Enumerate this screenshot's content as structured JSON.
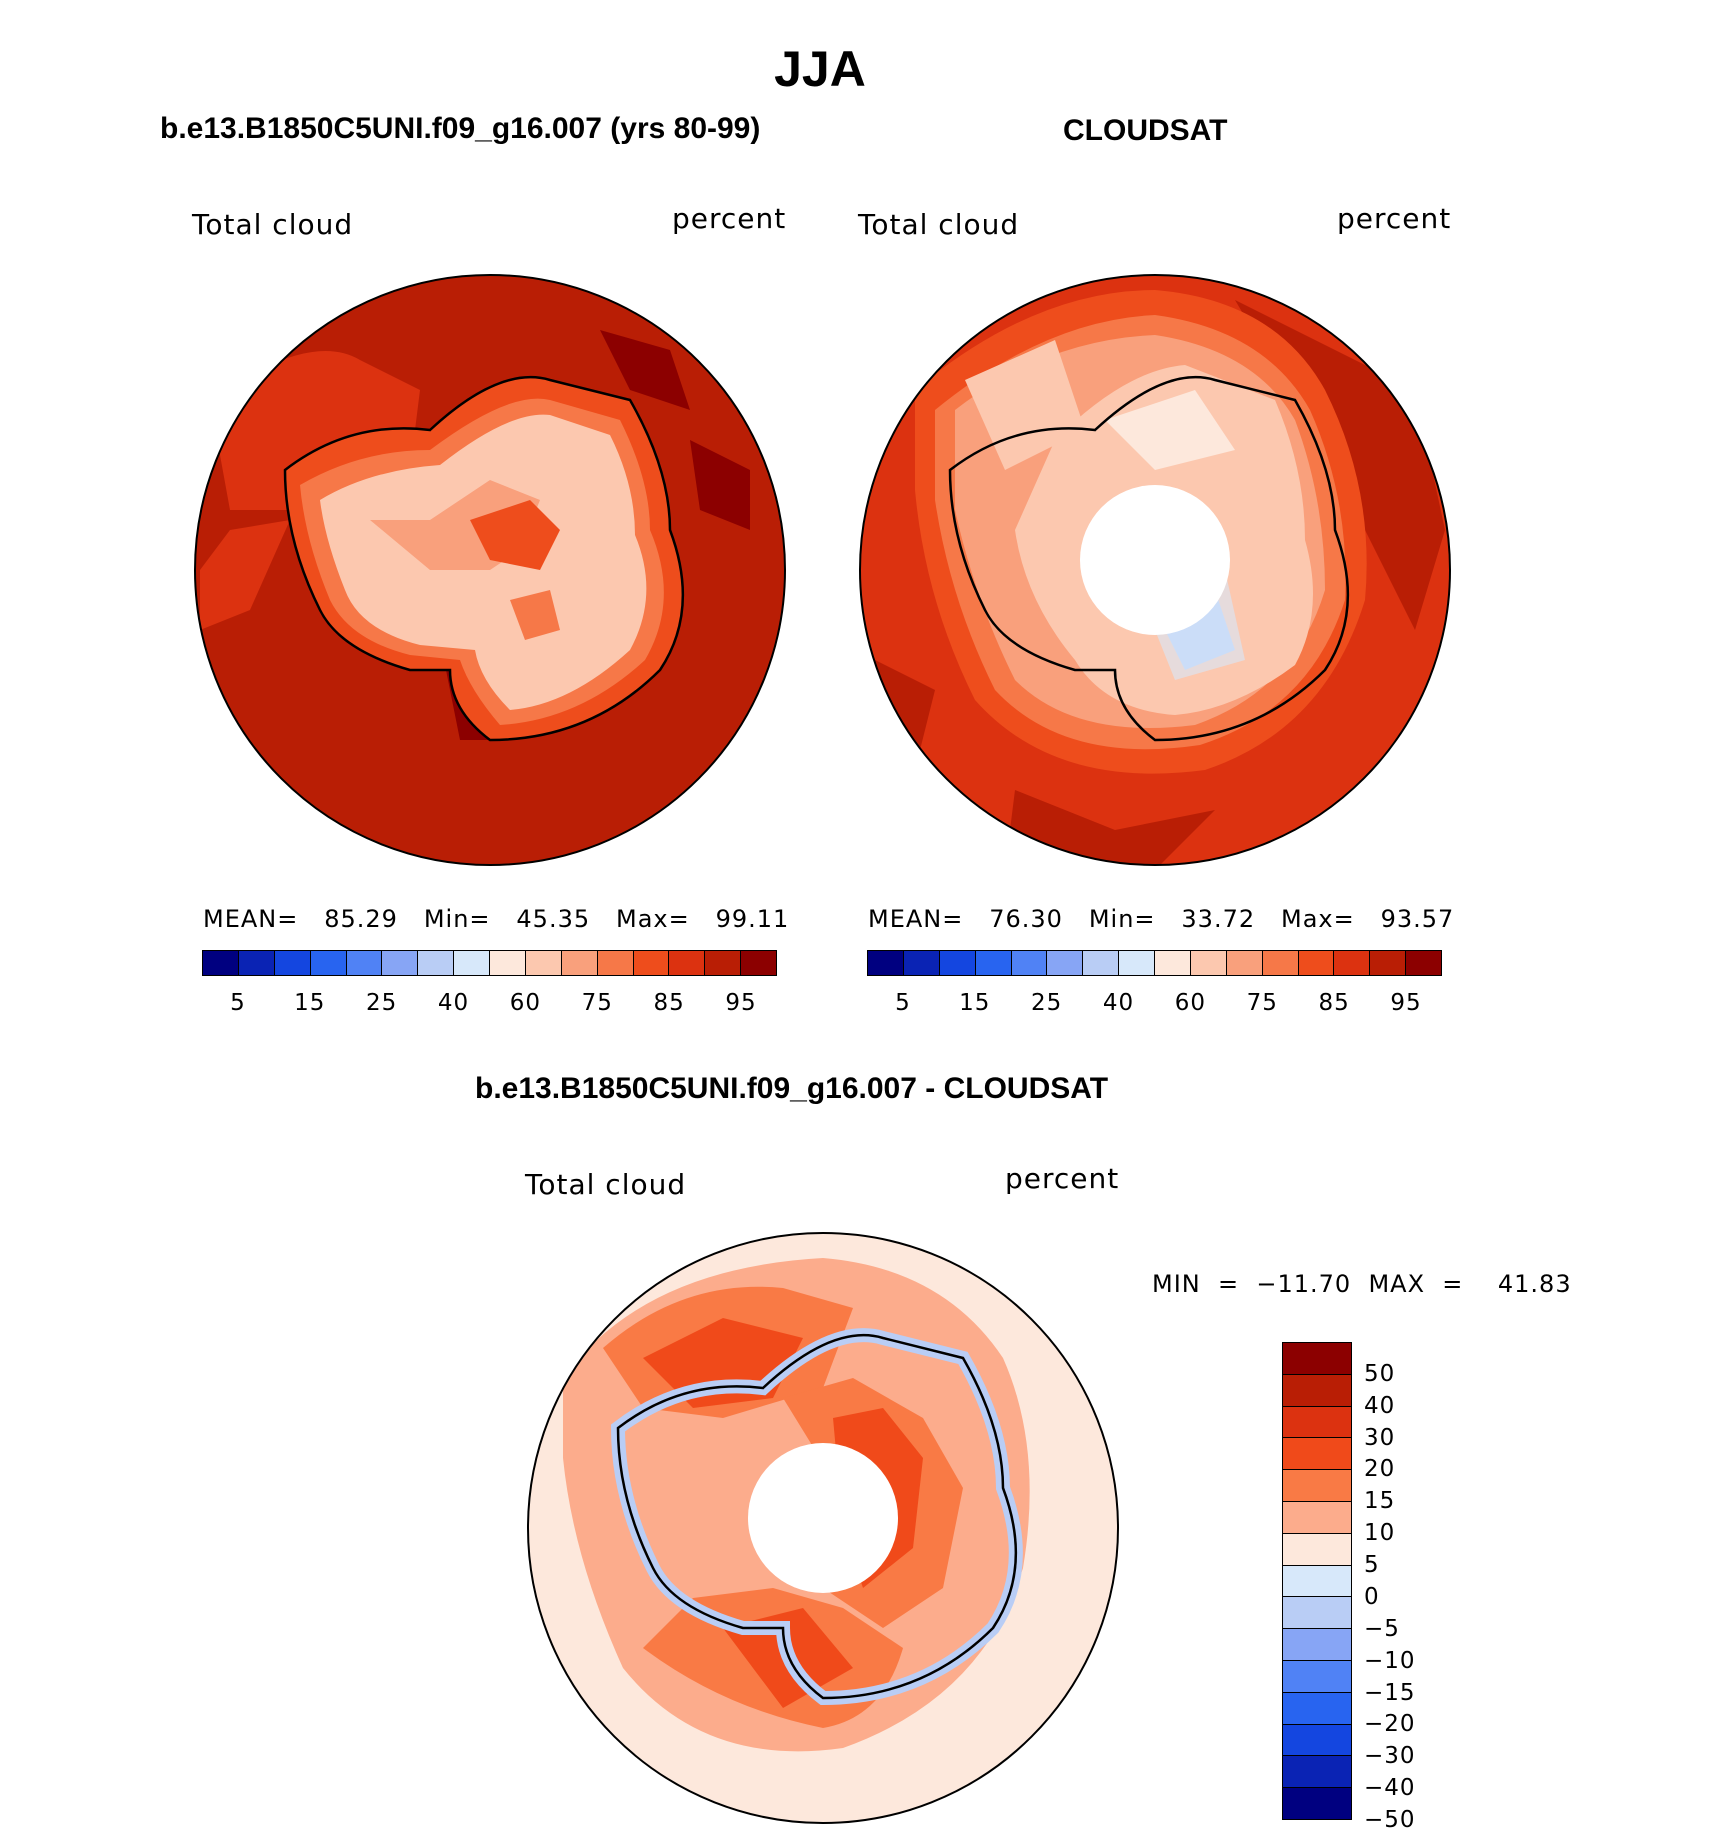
{
  "title": "JJA",
  "panels": [
    {
      "heading": "b.e13.B1850C5UNI.f09_g16.007 (yrs 80-99)",
      "variable": "Total cloud",
      "units": "percent",
      "stats": "MEAN=   85.29   Min=   45.35   Max=   99.11"
    },
    {
      "heading": "CLOUDSAT",
      "variable": "Total cloud",
      "units": "percent",
      "stats": "MEAN=   76.30   Min=   33.72   Max=   93.57"
    }
  ],
  "diff_panel": {
    "heading": "b.e13.B1850C5UNI.f09_g16.007 - CLOUDSAT",
    "variable": "Total cloud",
    "units": "percent",
    "stats": "MIN  =  −11.70  MAX  =    41.83"
  },
  "colorbar_main": {
    "colors": [
      "#000080",
      "#0a23b4",
      "#1446e0",
      "#2864f0",
      "#5082f5",
      "#87a5f5",
      "#b9cdf5",
      "#d7e8fa",
      "#fde8dc",
      "#fcc8af",
      "#f9a07c",
      "#f67848",
      "#ee4d1c",
      "#dc3210",
      "#b91e05",
      "#8c0000"
    ],
    "tick_labels": [
      "5",
      "15",
      "25",
      "40",
      "60",
      "75",
      "85",
      "95"
    ]
  },
  "colorbar_diff": {
    "colors": [
      "#8c0000",
      "#b91e05",
      "#dc3210",
      "#f04a1a",
      "#f97a45",
      "#fcac8c",
      "#fde8dc",
      "#d7e8fa",
      "#b9cdf5",
      "#87a5f5",
      "#5082f5",
      "#2864f0",
      "#1446e0",
      "#0a23b4",
      "#000080"
    ],
    "tick_labels": [
      "50",
      "40",
      "30",
      "20",
      "15",
      "10",
      "5",
      "0",
      "−5",
      "−10",
      "−15",
      "−20",
      "−30",
      "−40",
      "−50"
    ]
  },
  "colors": {
    "coast": "#000000",
    "model_ocean": "#b91e05",
    "obs_ocean": "#dc3210",
    "diff_ocean": "#fde8dc"
  }
}
